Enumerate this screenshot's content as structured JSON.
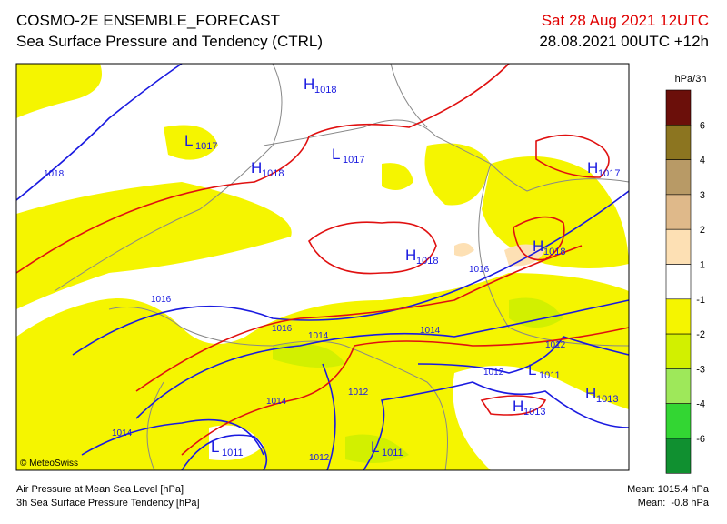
{
  "header": {
    "title": "COSMO-2E ENSEMBLE_FORECAST",
    "subtitle": "Sea Surface Pressure and Tendency (CTRL)",
    "valid_time": "Sat 28 Aug 2021 12UTC",
    "run": "28.08.2021 00UTC +12h"
  },
  "colorbar": {
    "unit": "hPa/3h",
    "colors": [
      "#6b0f0a",
      "#8c7520",
      "#b89a66",
      "#dfb98a",
      "#fde0b4",
      "#ffffff",
      "#f5f500",
      "#d2f000",
      "#9ee85a",
      "#33d633",
      "#109030"
    ],
    "labels": [
      "6",
      "4",
      "3",
      "2",
      "1",
      "-1",
      "-2",
      "-3",
      "-4",
      "-6"
    ]
  },
  "centers": [
    {
      "letter": "H",
      "value": "1018"
    },
    {
      "letter": "L",
      "value": "1017"
    },
    {
      "letter": "H",
      "value": "1018"
    },
    {
      "letter": "L",
      "value": "1017"
    },
    {
      "letter": "H",
      "value": "1017"
    },
    {
      "letter": "H",
      "value": "1018"
    },
    {
      "letter": "H",
      "value": "1018"
    },
    {
      "letter": "L",
      "value": "1011"
    },
    {
      "letter": "H",
      "value": "1013"
    },
    {
      "letter": "H",
      "value": "1013"
    },
    {
      "letter": "L",
      "value": "1011"
    },
    {
      "letter": "L",
      "value": "1011"
    }
  ],
  "isobar_labels": [
    "1018",
    "1016",
    "1016",
    "1016",
    "1014",
    "1014",
    "1012",
    "1012",
    "1012",
    "1014",
    "1014",
    "1012"
  ],
  "footer": {
    "copyright": "© MeteoSwiss",
    "line1": "Air Pressure at Mean Sea Level [hPa]",
    "line2": "3h Sea Surface Pressure Tendency [hPa]",
    "mean_pressure": "Mean: 1015.4 hPa",
    "mean_tendency": "Mean:  -0.8 hPa"
  }
}
